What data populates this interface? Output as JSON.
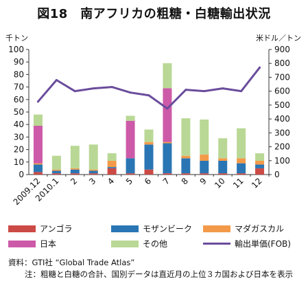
{
  "figure": {
    "title": "図18　南アフリカの粗糖・白糖輸出状況",
    "y_left_unit": "千トン",
    "y_right_unit": "米ドル／トン"
  },
  "chart_data": {
    "type": "bar",
    "stacked": true,
    "categories": [
      "2009.12",
      "2010.1",
      "2",
      "3",
      "4",
      "5",
      "6",
      "7",
      "8",
      "9",
      "10",
      "11",
      "12"
    ],
    "series": [
      {
        "name": "アンゴラ",
        "color": "#cc4a46",
        "values": [
          2,
          1,
          1,
          1,
          5,
          1,
          4,
          1,
          1,
          1,
          1,
          1,
          5
        ]
      },
      {
        "name": "モザンビーク",
        "color": "#2a76b4",
        "values": [
          6,
          2,
          3,
          2,
          1,
          12,
          20,
          24,
          12,
          10,
          10,
          8,
          3
        ]
      },
      {
        "name": "マダガスカル",
        "color": "#f39a4a",
        "values": [
          1,
          1,
          1,
          1,
          5,
          0,
          2,
          1,
          2,
          5,
          2,
          4,
          3
        ]
      },
      {
        "name": "日本",
        "color": "#cd5aa8",
        "values": [
          30,
          0,
          0,
          0,
          0,
          30,
          0,
          43,
          0,
          0,
          0,
          0,
          0
        ]
      },
      {
        "name": "その他",
        "color": "#b9d895",
        "values": [
          9,
          11,
          18,
          20,
          6,
          4,
          10,
          20,
          30,
          28,
          16,
          24,
          6
        ]
      }
    ],
    "line": {
      "name": "輸出単価(FOB)",
      "color": "#6a4c9c",
      "axis": "right",
      "values": [
        525,
        680,
        600,
        620,
        630,
        590,
        570,
        475,
        610,
        600,
        620,
        600,
        770
      ]
    },
    "y_left": {
      "min": 0,
      "max": 100,
      "step": 10,
      "ticks": [
        "0",
        "10",
        "20",
        "30",
        "40",
        "50",
        "60",
        "70",
        "80",
        "90",
        "100"
      ]
    },
    "y_right": {
      "min": 0,
      "max": 900,
      "step": 100,
      "ticks": [
        "0",
        "100",
        "200",
        "300",
        "400",
        "500",
        "600",
        "700",
        "800",
        "900"
      ]
    },
    "grid": false,
    "legend_position": "bottom"
  },
  "notes": {
    "source_label": "資料：",
    "source_text": "GTI社 “Global Trade Atlas”",
    "note_label": "注：",
    "note_text": "粗糖と白糖の合計、国別データは直近月の上位３カ国および日本を表示"
  }
}
